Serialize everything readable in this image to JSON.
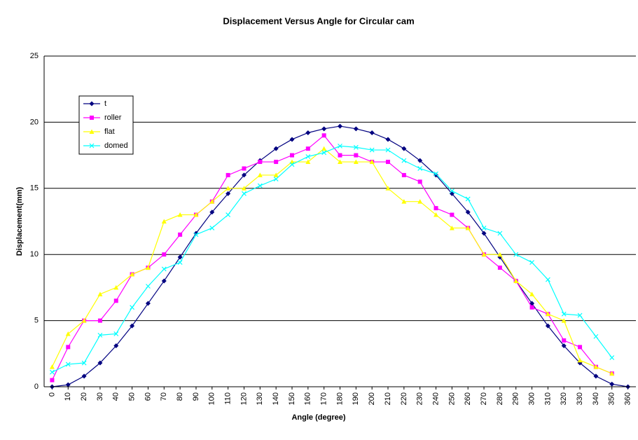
{
  "chart_data": {
    "type": "line",
    "title": "Displacement Versus Angle for Circular cam",
    "x_label": "Angle (degree)",
    "y_label": "Displacement(mm)",
    "x": [
      0,
      10,
      20,
      30,
      40,
      50,
      60,
      70,
      80,
      90,
      100,
      110,
      120,
      130,
      140,
      150,
      160,
      170,
      180,
      190,
      200,
      210,
      220,
      230,
      240,
      250,
      260,
      270,
      280,
      290,
      300,
      310,
      320,
      330,
      340,
      350,
      360
    ],
    "xlim": [
      -5,
      365
    ],
    "ylim": [
      0,
      25
    ],
    "yticks": [
      0,
      5,
      10,
      15,
      20,
      25
    ],
    "grid": true,
    "series": [
      {
        "name": "t",
        "color": "#000080",
        "marker": "diamond",
        "values": [
          0,
          0.15,
          0.8,
          1.8,
          3.1,
          4.6,
          6.3,
          8.0,
          9.8,
          11.6,
          13.2,
          14.6,
          16.0,
          17.1,
          18.0,
          18.7,
          19.2,
          19.5,
          19.7,
          19.5,
          19.2,
          18.7,
          18.0,
          17.1,
          16.0,
          14.6,
          13.2,
          11.6,
          9.8,
          8.0,
          6.3,
          4.6,
          3.1,
          1.8,
          0.8,
          0.2,
          0
        ]
      },
      {
        "name": "roller",
        "color": "#ff00ff",
        "marker": "square",
        "values": [
          0.5,
          3,
          5,
          5,
          6.5,
          8.5,
          9,
          10,
          11.5,
          13,
          14,
          16,
          16.5,
          17,
          17,
          17.5,
          18,
          19,
          17.5,
          17.5,
          17,
          17,
          16,
          15.5,
          13.5,
          13,
          12,
          10,
          9,
          8,
          6,
          5.5,
          3.5,
          3,
          1.5,
          1,
          null
        ]
      },
      {
        "name": "flat",
        "color": "#ffff00",
        "marker": "triangle",
        "values": [
          1.5,
          4,
          5,
          7,
          7.5,
          8.5,
          9,
          12.5,
          13,
          13,
          14,
          15,
          15,
          16,
          16,
          17,
          17,
          18,
          17,
          17,
          17,
          15,
          14,
          14,
          13,
          12,
          12,
          10,
          10,
          8,
          7,
          5.5,
          5,
          2,
          1.5,
          1,
          null
        ]
      },
      {
        "name": "domed",
        "color": "#00ffff",
        "marker": "cross",
        "values": [
          1.1,
          1.7,
          1.8,
          3.9,
          4,
          6,
          7.6,
          8.9,
          9.4,
          11.5,
          12,
          13,
          14.6,
          15.2,
          15.7,
          16.8,
          17.4,
          17.7,
          18.2,
          18.1,
          17.9,
          17.9,
          17.1,
          16.5,
          16.1,
          14.8,
          14.2,
          12,
          11.6,
          10,
          9.4,
          8.1,
          5.5,
          5.4,
          3.8,
          2.2,
          null
        ]
      }
    ]
  }
}
